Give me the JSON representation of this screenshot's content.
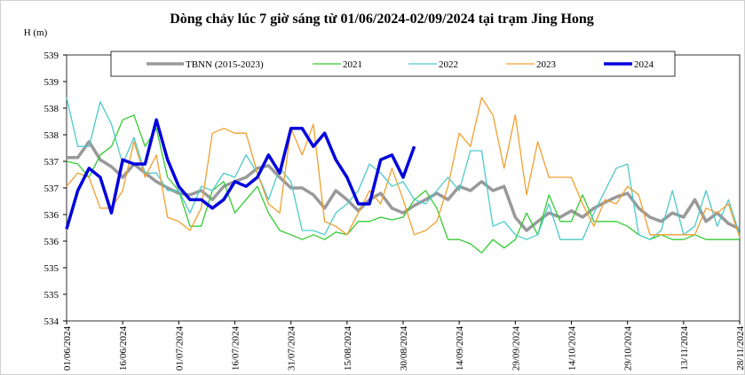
{
  "chart_data": {
    "type": "line",
    "title": "Dòng chảy lúc 7 giờ sáng từ 01/06/2024-02/09/2024 tại trạm Jing Hong",
    "y_label": "H (m)",
    "x": [
      "01/06/2024",
      "04/06/2024",
      "07/06/2024",
      "10/06/2024",
      "13/06/2024",
      "16/06/2024",
      "19/06/2024",
      "22/06/2024",
      "25/06/2024",
      "28/06/2024",
      "01/07/2024",
      "04/07/2024",
      "07/07/2024",
      "10/07/2024",
      "13/07/2024",
      "16/07/2024",
      "19/07/2024",
      "22/07/2024",
      "25/07/2024",
      "28/07/2024",
      "31/07/2024",
      "03/08/2024",
      "06/08/2024",
      "09/08/2024",
      "12/08/2024",
      "15/08/2024",
      "18/08/2024",
      "21/08/2024",
      "24/08/2024",
      "27/08/2024",
      "30/08/2024",
      "02/09/2024",
      "05/09/2024",
      "08/09/2024",
      "11/09/2024",
      "14/09/2024",
      "17/09/2024",
      "20/09/2024",
      "23/09/2024",
      "26/09/2024",
      "29/09/2024",
      "02/10/2024",
      "05/10/2024",
      "08/10/2024",
      "11/10/2024",
      "14/10/2024",
      "17/10/2024",
      "20/10/2024",
      "23/10/2024",
      "26/10/2024",
      "29/10/2024",
      "01/11/2024",
      "04/11/2024",
      "07/11/2024",
      "10/11/2024",
      "13/11/2024",
      "16/11/2024",
      "19/11/2024",
      "22/11/2024",
      "25/11/2024",
      "28/11/2024"
    ],
    "xticks": [
      "01/06/2024",
      "16/06/2024",
      "01/07/2024",
      "16/07/2024",
      "31/07/2024",
      "15/08/2024",
      "30/08/2024",
      "14/09/2024",
      "29/09/2024",
      "14/10/2024",
      "29/10/2024",
      "13/11/2024",
      "28/11/2024"
    ],
    "ylim": [
      534,
      539
    ],
    "yticks": [
      534,
      {
        "value": 534.5,
        "label": "535"
      },
      535,
      {
        "value": 535.5,
        "label": "536"
      },
      536,
      {
        "value": 536.5,
        "label": "537"
      },
      537,
      {
        "value": 537.5,
        "label": "538"
      },
      538,
      {
        "value": 538.5,
        "label": "539"
      },
      539
    ],
    "grid": false,
    "legend": "top",
    "series": [
      {
        "name": "TBNN (2015-2023)",
        "color": "#999999",
        "width": 3.5,
        "values": [
          537.07,
          537.07,
          537.37,
          537.03,
          536.9,
          536.7,
          536.95,
          536.78,
          536.62,
          536.5,
          536.4,
          536.37,
          536.45,
          536.28,
          536.53,
          536.62,
          536.7,
          536.87,
          536.92,
          536.7,
          536.5,
          536.5,
          536.37,
          536.12,
          536.45,
          536.28,
          536.07,
          536.28,
          536.4,
          536.12,
          536.03,
          536.17,
          536.28,
          536.4,
          536.28,
          536.53,
          536.45,
          536.62,
          536.45,
          536.53,
          535.95,
          535.7,
          535.87,
          536.03,
          535.95,
          536.07,
          535.95,
          536.12,
          536.23,
          536.33,
          536.4,
          536.12,
          535.95,
          535.87,
          536.03,
          535.95,
          536.28,
          535.87,
          536.03,
          535.83,
          535.73
        ]
      },
      {
        "name": "2021",
        "color": "#33cc33",
        "width": 1.3,
        "values": [
          537.0,
          536.95,
          536.7,
          537.12,
          537.28,
          537.78,
          537.87,
          537.28,
          537.62,
          536.7,
          536.45,
          535.78,
          535.78,
          536.45,
          536.62,
          536.03,
          536.28,
          536.53,
          536.03,
          535.7,
          535.62,
          535.53,
          535.62,
          535.53,
          535.67,
          535.62,
          535.87,
          535.87,
          535.95,
          535.9,
          535.95,
          536.28,
          536.45,
          536.12,
          535.53,
          535.53,
          535.45,
          535.28,
          535.53,
          535.37,
          535.53,
          536.03,
          535.62,
          536.37,
          535.87,
          535.87,
          536.37,
          535.87,
          535.87,
          535.87,
          535.78,
          535.62,
          535.53,
          535.62,
          535.53,
          535.53,
          535.62,
          535.53,
          535.53,
          535.53,
          535.53
        ]
      },
      {
        "name": "2022",
        "color": "#4dc9c9",
        "width": 1.3,
        "values": [
          538.2,
          537.28,
          537.28,
          538.12,
          537.7,
          536.95,
          537.45,
          536.78,
          536.78,
          536.45,
          536.45,
          536.03,
          536.53,
          536.45,
          536.78,
          536.7,
          537.12,
          536.78,
          536.28,
          536.87,
          536.62,
          535.7,
          535.7,
          535.62,
          536.03,
          536.2,
          536.45,
          536.95,
          536.78,
          536.53,
          536.62,
          536.28,
          536.2,
          536.45,
          536.7,
          536.45,
          537.2,
          537.2,
          535.78,
          535.87,
          535.62,
          535.53,
          535.62,
          536.2,
          535.53,
          535.53,
          535.53,
          536.03,
          536.45,
          536.87,
          536.95,
          535.62,
          535.53,
          535.7,
          536.45,
          535.62,
          535.78,
          536.45,
          535.78,
          536.28,
          535.62
        ]
      },
      {
        "name": "2023",
        "color": "#f0a030",
        "width": 1.3,
        "values": [
          536.53,
          536.78,
          536.7,
          536.12,
          536.12,
          536.45,
          537.37,
          536.7,
          537.12,
          535.95,
          535.87,
          535.7,
          536.12,
          537.53,
          537.62,
          537.53,
          537.53,
          536.78,
          536.2,
          536.03,
          537.62,
          537.12,
          537.7,
          535.87,
          535.78,
          535.62,
          536.03,
          536.45,
          536.2,
          536.87,
          536.28,
          535.62,
          535.7,
          535.87,
          536.53,
          537.53,
          537.28,
          538.2,
          537.87,
          536.87,
          537.87,
          536.37,
          537.37,
          536.7,
          536.7,
          536.7,
          536.2,
          535.78,
          536.28,
          536.2,
          536.53,
          536.37,
          535.62,
          535.62,
          535.62,
          535.62,
          535.62,
          536.12,
          536.03,
          536.2,
          535.57
        ]
      },
      {
        "name": "2024",
        "color": "#0000dd",
        "width": 3.5,
        "values": [
          535.73,
          536.45,
          536.87,
          536.7,
          536.03,
          537.03,
          536.95,
          536.95,
          537.78,
          537.03,
          536.53,
          536.28,
          536.28,
          536.12,
          536.28,
          536.62,
          536.53,
          536.7,
          537.12,
          536.78,
          537.62,
          537.62,
          537.28,
          537.53,
          537.03,
          536.7,
          536.2,
          536.2,
          537.03,
          537.12,
          536.7,
          537.28,
          null,
          null,
          null,
          null,
          null,
          null,
          null,
          null,
          null,
          null,
          null,
          null,
          null,
          null,
          null,
          null,
          null,
          null,
          null,
          null,
          null,
          null,
          null,
          null,
          null,
          null,
          null,
          null,
          null
        ]
      }
    ]
  }
}
